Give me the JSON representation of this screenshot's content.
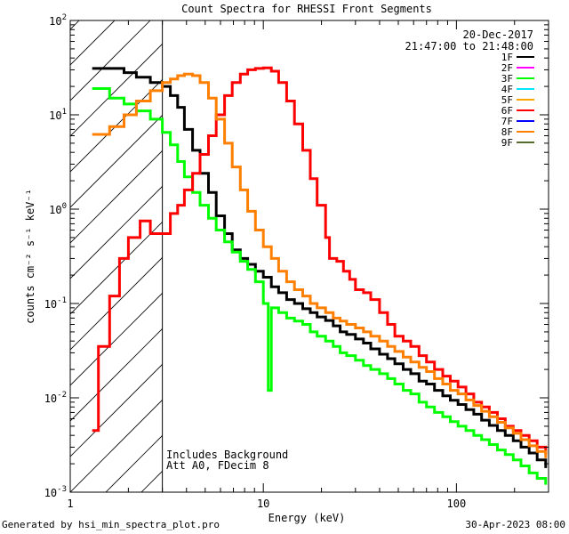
{
  "chart_data": {
    "type": "line",
    "title": "Count Spectra for RHESSI Front Segments",
    "xlabel": "Energy (keV)",
    "ylabel": "counts cm⁻² s⁻¹ keV⁻¹",
    "xscale": "log",
    "yscale": "log",
    "xlim": [
      1,
      300
    ],
    "ylim": [
      0.001,
      100
    ],
    "x_ticks": [
      {
        "value": 1,
        "label": "1"
      },
      {
        "value": 10,
        "label": "10"
      },
      {
        "value": 100,
        "label": "100"
      }
    ],
    "y_ticks": [
      {
        "value": 100,
        "base": "10",
        "exp": "2"
      },
      {
        "value": 10,
        "base": "10",
        "exp": "1"
      },
      {
        "value": 1,
        "base": "10",
        "exp": "0"
      },
      {
        "value": 0.1,
        "base": "10",
        "exp": "-1"
      },
      {
        "value": 0.01,
        "base": "10",
        "exp": "-2"
      },
      {
        "value": 0.001,
        "base": "10",
        "exp": "-3"
      }
    ],
    "date": "20-Dec-2017",
    "time_range": "21:47:00 to 21:48:00",
    "excluded_region": {
      "from": 1,
      "to": 3
    },
    "annotations": [
      "Includes Background",
      "Att A0, FDecim 8"
    ],
    "legend": [
      {
        "label": "1F",
        "color": "#000000"
      },
      {
        "label": "2F",
        "color": "#ff00ff"
      },
      {
        "label": "3F",
        "color": "#00ff00"
      },
      {
        "label": "4F",
        "color": "#00e5ff"
      },
      {
        "label": "5F",
        "color": "#ffa500"
      },
      {
        "label": "6F",
        "color": "#ff0000"
      },
      {
        "label": "7F",
        "color": "#0000ff"
      },
      {
        "label": "8F",
        "color": "#ff7f00"
      },
      {
        "label": "9F",
        "color": "#556b2f"
      }
    ],
    "series": [
      {
        "name": "1F",
        "color": "#000000",
        "points": [
          [
            1.3,
            31
          ],
          [
            1.6,
            31
          ],
          [
            1.9,
            28
          ],
          [
            2.2,
            25
          ],
          [
            2.6,
            22
          ],
          [
            3.0,
            20
          ],
          [
            3.3,
            16
          ],
          [
            3.6,
            12
          ],
          [
            3.9,
            7
          ],
          [
            4.3,
            4.2
          ],
          [
            4.7,
            2.4
          ],
          [
            5.2,
            1.5
          ],
          [
            5.7,
            0.85
          ],
          [
            6.3,
            0.55
          ],
          [
            6.9,
            0.37
          ],
          [
            7.6,
            0.3
          ],
          [
            8.3,
            0.26
          ],
          [
            9.1,
            0.22
          ],
          [
            10,
            0.19
          ],
          [
            11,
            0.15
          ],
          [
            12,
            0.13
          ],
          [
            13.2,
            0.11
          ],
          [
            14.5,
            0.1
          ],
          [
            16,
            0.088
          ],
          [
            17.5,
            0.08
          ],
          [
            19,
            0.072
          ],
          [
            21,
            0.066
          ],
          [
            23,
            0.058
          ],
          [
            25,
            0.05
          ],
          [
            27,
            0.047
          ],
          [
            30,
            0.042
          ],
          [
            33,
            0.038
          ],
          [
            36,
            0.033
          ],
          [
            40,
            0.029
          ],
          [
            44,
            0.026
          ],
          [
            48,
            0.023
          ],
          [
            53,
            0.02
          ],
          [
            58,
            0.018
          ],
          [
            64,
            0.015
          ],
          [
            70,
            0.014
          ],
          [
            77,
            0.012
          ],
          [
            85,
            0.0105
          ],
          [
            93,
            0.0094
          ],
          [
            102,
            0.0085
          ],
          [
            112,
            0.0075
          ],
          [
            123,
            0.0067
          ],
          [
            135,
            0.0058
          ],
          [
            148,
            0.0051
          ],
          [
            163,
            0.0045
          ],
          [
            179,
            0.004
          ],
          [
            197,
            0.0035
          ],
          [
            216,
            0.003
          ],
          [
            238,
            0.0026
          ],
          [
            262,
            0.0022
          ],
          [
            290,
            0.0018
          ]
        ]
      },
      {
        "name": "3F",
        "color": "#00ff00",
        "points": [
          [
            1.3,
            19
          ],
          [
            1.6,
            15
          ],
          [
            1.9,
            13
          ],
          [
            2.2,
            11
          ],
          [
            2.6,
            9
          ],
          [
            3.0,
            6.5
          ],
          [
            3.3,
            4.8
          ],
          [
            3.6,
            3.2
          ],
          [
            3.9,
            2.2
          ],
          [
            4.3,
            1.5
          ],
          [
            4.7,
            1.1
          ],
          [
            5.2,
            0.8
          ],
          [
            5.7,
            0.6
          ],
          [
            6.3,
            0.45
          ],
          [
            6.9,
            0.35
          ],
          [
            7.6,
            0.28
          ],
          [
            8.3,
            0.23
          ],
          [
            9.1,
            0.17
          ],
          [
            10,
            0.1
          ],
          [
            10.6,
            0.012
          ],
          [
            11,
            0.09
          ],
          [
            12,
            0.08
          ],
          [
            13.2,
            0.07
          ],
          [
            14.5,
            0.065
          ],
          [
            16,
            0.06
          ],
          [
            17.5,
            0.05
          ],
          [
            19,
            0.045
          ],
          [
            21,
            0.04
          ],
          [
            23,
            0.035
          ],
          [
            25,
            0.03
          ],
          [
            27,
            0.028
          ],
          [
            30,
            0.025
          ],
          [
            33,
            0.022
          ],
          [
            36,
            0.02
          ],
          [
            40,
            0.018
          ],
          [
            44,
            0.016
          ],
          [
            48,
            0.014
          ],
          [
            53,
            0.012
          ],
          [
            58,
            0.011
          ],
          [
            64,
            0.009
          ],
          [
            70,
            0.008
          ],
          [
            77,
            0.007
          ],
          [
            85,
            0.0063
          ],
          [
            93,
            0.0056
          ],
          [
            102,
            0.005
          ],
          [
            112,
            0.0045
          ],
          [
            123,
            0.004
          ],
          [
            135,
            0.0036
          ],
          [
            148,
            0.0032
          ],
          [
            163,
            0.0028
          ],
          [
            179,
            0.0025
          ],
          [
            197,
            0.0022
          ],
          [
            216,
            0.0019
          ],
          [
            238,
            0.0016
          ],
          [
            262,
            0.0014
          ],
          [
            290,
            0.0012
          ]
        ]
      },
      {
        "name": "6F",
        "color": "#ff0000",
        "points": [
          [
            1.3,
            0.0045
          ],
          [
            1.4,
            0.035
          ],
          [
            1.6,
            0.12
          ],
          [
            1.8,
            0.3
          ],
          [
            2.0,
            0.5
          ],
          [
            2.3,
            0.75
          ],
          [
            2.6,
            0.55
          ],
          [
            3.0,
            0.55
          ],
          [
            3.3,
            0.9
          ],
          [
            3.6,
            1.1
          ],
          [
            3.9,
            1.6
          ],
          [
            4.3,
            2.4
          ],
          [
            4.7,
            3.8
          ],
          [
            5.2,
            6
          ],
          [
            5.7,
            10
          ],
          [
            6.3,
            16
          ],
          [
            6.9,
            22
          ],
          [
            7.6,
            27
          ],
          [
            8.3,
            30
          ],
          [
            9.1,
            31
          ],
          [
            10,
            31.5
          ],
          [
            11,
            29
          ],
          [
            12,
            22
          ],
          [
            13.2,
            14
          ],
          [
            14.5,
            8
          ],
          [
            16,
            4.2
          ],
          [
            17.5,
            2.1
          ],
          [
            19,
            1.1
          ],
          [
            21,
            0.5
          ],
          [
            22,
            0.3
          ],
          [
            24,
            0.28
          ],
          [
            26,
            0.22
          ],
          [
            28,
            0.18
          ],
          [
            30,
            0.14
          ],
          [
            33,
            0.13
          ],
          [
            36,
            0.11
          ],
          [
            40,
            0.08
          ],
          [
            44,
            0.06
          ],
          [
            48,
            0.045
          ],
          [
            53,
            0.04
          ],
          [
            58,
            0.035
          ],
          [
            64,
            0.028
          ],
          [
            70,
            0.024
          ],
          [
            77,
            0.02
          ],
          [
            85,
            0.017
          ],
          [
            93,
            0.015
          ],
          [
            102,
            0.013
          ],
          [
            112,
            0.011
          ],
          [
            123,
            0.009
          ],
          [
            135,
            0.008
          ],
          [
            148,
            0.007
          ],
          [
            163,
            0.006
          ],
          [
            179,
            0.005
          ],
          [
            197,
            0.0045
          ],
          [
            216,
            0.004
          ],
          [
            238,
            0.0035
          ],
          [
            262,
            0.003
          ],
          [
            290,
            0.0025
          ]
        ]
      },
      {
        "name": "8F",
        "color": "#ff7f00",
        "points": [
          [
            1.3,
            6.2
          ],
          [
            1.6,
            7.5
          ],
          [
            1.9,
            10
          ],
          [
            2.2,
            14
          ],
          [
            2.6,
            18
          ],
          [
            3.0,
            22
          ],
          [
            3.3,
            24
          ],
          [
            3.6,
            26
          ],
          [
            3.9,
            27
          ],
          [
            4.3,
            26
          ],
          [
            4.7,
            22
          ],
          [
            5.2,
            15
          ],
          [
            5.7,
            9
          ],
          [
            6.3,
            5
          ],
          [
            6.9,
            2.8
          ],
          [
            7.6,
            1.6
          ],
          [
            8.3,
            0.95
          ],
          [
            9.1,
            0.6
          ],
          [
            10,
            0.4
          ],
          [
            11,
            0.3
          ],
          [
            12,
            0.22
          ],
          [
            13.2,
            0.17
          ],
          [
            14.5,
            0.14
          ],
          [
            16,
            0.12
          ],
          [
            17.5,
            0.1
          ],
          [
            19,
            0.09
          ],
          [
            21,
            0.08
          ],
          [
            23,
            0.07
          ],
          [
            25,
            0.065
          ],
          [
            27,
            0.06
          ],
          [
            30,
            0.055
          ],
          [
            33,
            0.05
          ],
          [
            36,
            0.045
          ],
          [
            40,
            0.04
          ],
          [
            44,
            0.035
          ],
          [
            48,
            0.031
          ],
          [
            53,
            0.027
          ],
          [
            58,
            0.024
          ],
          [
            64,
            0.021
          ],
          [
            70,
            0.019
          ],
          [
            77,
            0.016
          ],
          [
            85,
            0.014
          ],
          [
            93,
            0.012
          ],
          [
            102,
            0.011
          ],
          [
            112,
            0.0095
          ],
          [
            123,
            0.0083
          ],
          [
            135,
            0.0072
          ],
          [
            148,
            0.0063
          ],
          [
            163,
            0.0055
          ],
          [
            179,
            0.0048
          ],
          [
            197,
            0.0042
          ],
          [
            216,
            0.0036
          ],
          [
            238,
            0.0031
          ],
          [
            262,
            0.0027
          ],
          [
            290,
            0.0023
          ]
        ]
      }
    ]
  },
  "footer": {
    "generator": "Generated by hsi_min_spectra_plot.pro",
    "timestamp": "30-Apr-2023 08:00"
  }
}
